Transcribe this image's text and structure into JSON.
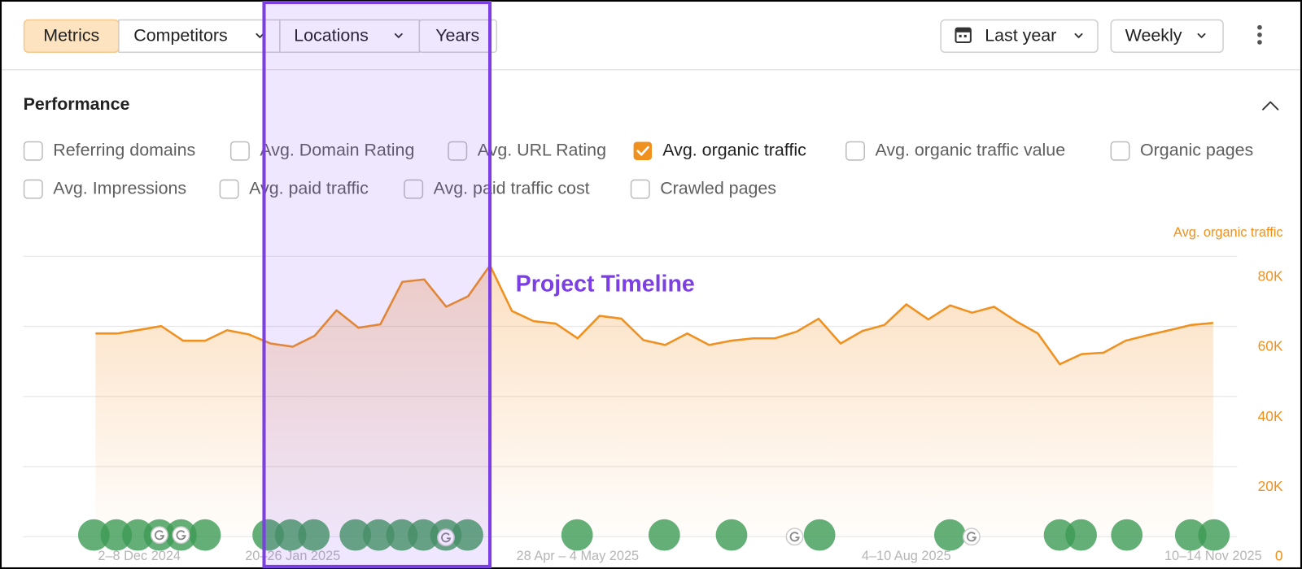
{
  "toolbar": {
    "tabs": [
      "Metrics",
      "Competitors",
      "Locations",
      "Years"
    ],
    "period": "Last year",
    "interval": "Weekly"
  },
  "performance": {
    "title": "Performance",
    "metrics": [
      {
        "label": "Referring domains",
        "checked": false
      },
      {
        "label": "Avg. Domain Rating",
        "checked": false
      },
      {
        "label": "Avg. URL Rating",
        "checked": false
      },
      {
        "label": "Avg. organic traffic",
        "checked": true
      },
      {
        "label": "Avg. organic traffic value",
        "checked": false
      },
      {
        "label": "Organic pages",
        "checked": false
      },
      {
        "label": "Avg. Impressions",
        "checked": false
      },
      {
        "label": "Avg. paid traffic",
        "checked": false
      },
      {
        "label": "Avg. paid traffic cost",
        "checked": false
      },
      {
        "label": "Crawled pages",
        "checked": false
      }
    ]
  },
  "chart_data": {
    "type": "area",
    "annotation": "Project Timeline",
    "categories": [
      null,
      null,
      "2–8 Dec 2024",
      null,
      null,
      null,
      null,
      null,
      null,
      "20–26 Jan 2025",
      null,
      null,
      null,
      null,
      null,
      null,
      null,
      null,
      null,
      null,
      null,
      null,
      "28 Apr – 4 May 2025",
      null,
      null,
      null,
      null,
      null,
      null,
      null,
      null,
      null,
      null,
      null,
      null,
      null,
      null,
      "4–10 Aug 2025",
      null,
      null,
      null,
      null,
      null,
      null,
      null,
      null,
      null,
      null,
      null,
      null,
      null,
      "10–14 Nov 2025"
    ],
    "series": [
      {
        "name": "Avg. organic traffic",
        "color": "#f0901e",
        "values": [
          58000,
          58000,
          59000,
          60100,
          55900,
          55900,
          58900,
          57700,
          55100,
          54200,
          57300,
          64600,
          59600,
          60600,
          72700,
          73400,
          65600,
          68600,
          77400,
          64400,
          61500,
          60800,
          56600,
          63000,
          62200,
          56100,
          54700,
          58000,
          54700,
          55900,
          56600,
          56600,
          58500,
          62200,
          55100,
          58700,
          60400,
          66300,
          62000,
          66000,
          63900,
          65600,
          61500,
          58000,
          49200,
          52100,
          52500,
          55900,
          57500,
          58900,
          60400,
          61000
        ]
      }
    ],
    "ylim": [
      0,
      80000
    ],
    "yticks": [
      0,
      {
        "value": 20000,
        "label": "20K"
      },
      {
        "value": 40000,
        "label": "40K"
      },
      {
        "value": 60000,
        "label": "60K"
      },
      {
        "value": 80000,
        "label": "80K"
      }
    ],
    "grid": true
  }
}
